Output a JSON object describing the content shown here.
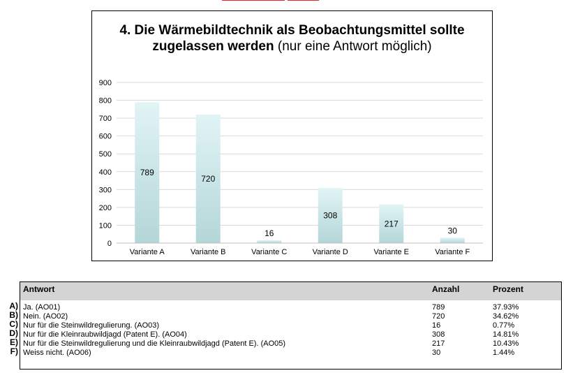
{
  "chart_data": {
    "type": "bar",
    "title_bold": "4. Die Wärmebildtechnik als Beobachtungsmittel sollte zugelassen werden",
    "title_normal": "(nur eine Antwort möglich)",
    "categories": [
      "Variante A",
      "Variante B",
      "Variante C",
      "Variante D",
      "Variante E",
      "Variante F"
    ],
    "values": [
      789,
      720,
      16,
      308,
      217,
      30
    ],
    "ylim": [
      0,
      900
    ],
    "yticks": [
      0,
      100,
      200,
      300,
      400,
      500,
      600,
      700,
      800,
      900
    ],
    "grid": true,
    "bar_color_top": "#e1f4f6",
    "bar_color_bottom": "#b4d6d8",
    "xlabel": "",
    "ylabel": ""
  },
  "table": {
    "headers": {
      "answer": "Antwort",
      "count": "Anzahl",
      "percent": "Prozent"
    },
    "rows": [
      {
        "letter": "A)",
        "answer": "Ja. (AO01)",
        "count": "789",
        "percent": "37.93%"
      },
      {
        "letter": "B)",
        "answer": "Nein. (AO02)",
        "count": "720",
        "percent": "34.62%"
      },
      {
        "letter": "C)",
        "answer": "Nur für die Steinwildregulierung. (AO03)",
        "count": "16",
        "percent": "0.77%"
      },
      {
        "letter": "D)",
        "answer": "Nur für die Kleinraubwildjagd (Patent E). (AO04)",
        "count": "308",
        "percent": "14.81%"
      },
      {
        "letter": "E)",
        "answer": "Nur für die Steinwildregulierung und die Kleinraubwildjagd (Patent E). (AO05)",
        "count": "217",
        "percent": "10.43%"
      },
      {
        "letter": "F)",
        "answer": "Weiss nicht. (AO06)",
        "count": "30",
        "percent": "1.44%"
      }
    ]
  }
}
